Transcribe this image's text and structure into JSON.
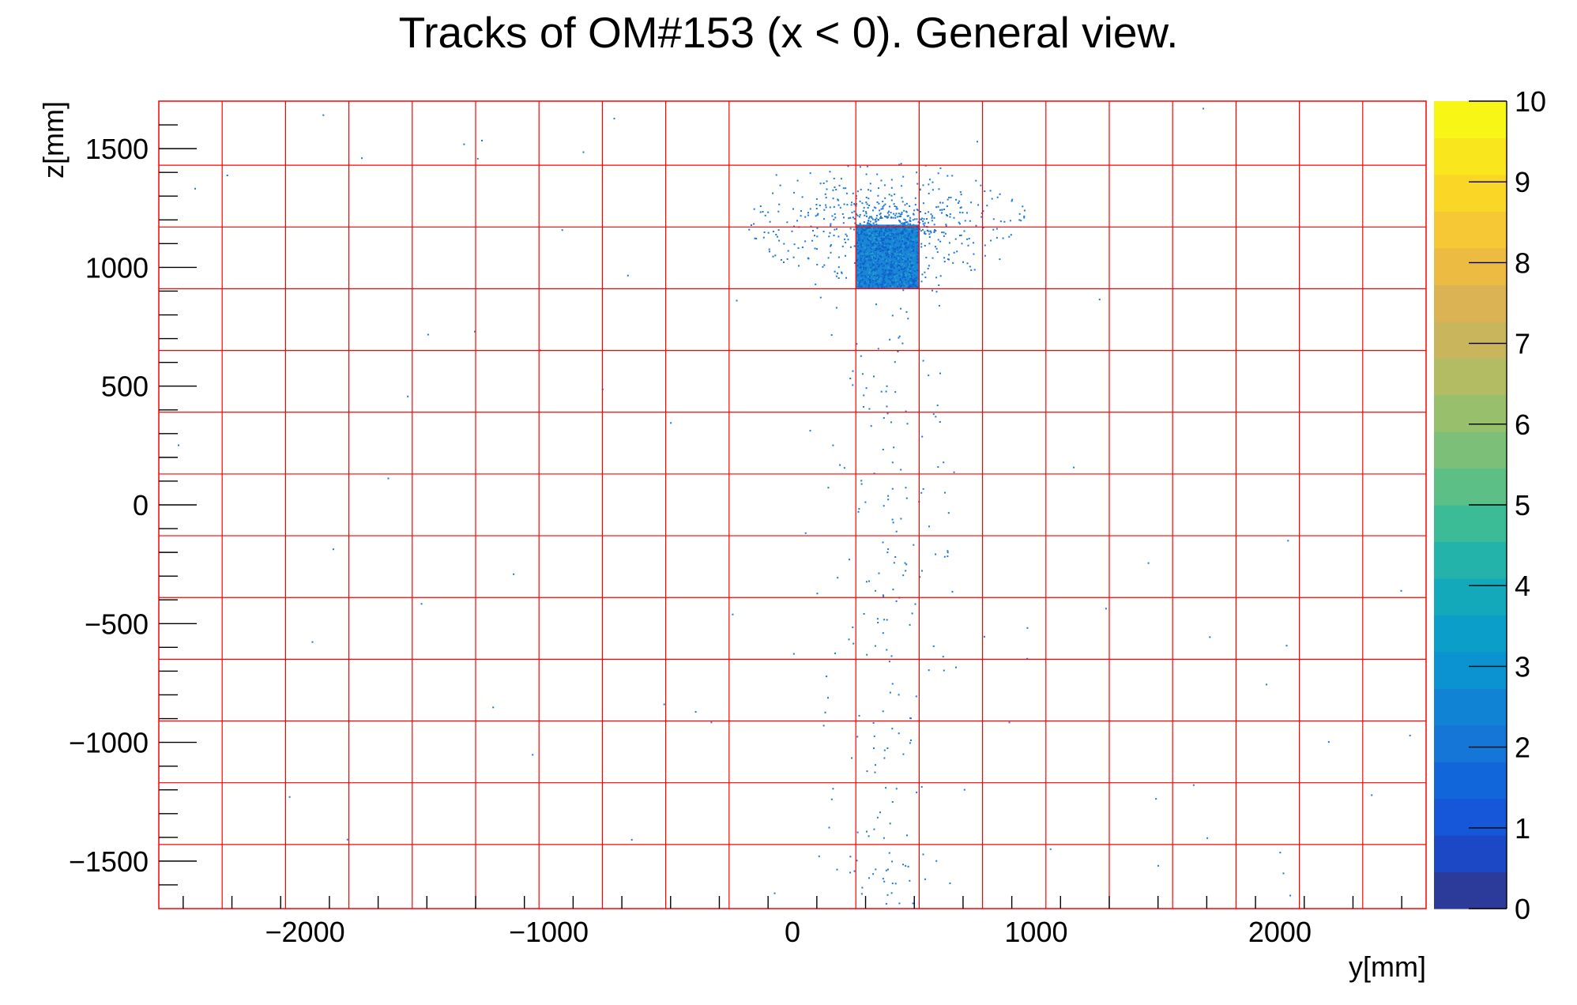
{
  "chart_data": {
    "type": "heatmap",
    "title": "Tracks of OM#153 (x < 0). General view.",
    "xlabel": "y[mm]",
    "ylabel": "z[mm]",
    "xlim": [
      -2600,
      2600
    ],
    "ylim": [
      -1700,
      1700
    ],
    "x_ticks": [
      -2000,
      -1000,
      0,
      1000,
      2000
    ],
    "x_tick_labels": [
      "−2000",
      "−1000",
      "0",
      "1000",
      "2000"
    ],
    "y_ticks": [
      -1500,
      -1000,
      -500,
      0,
      500,
      1000,
      1500
    ],
    "y_tick_labels": [
      "−1500",
      "−1000",
      "−500",
      "0",
      "500",
      "1000",
      "1500"
    ],
    "colorbar": {
      "range": [
        0,
        10
      ],
      "ticks": [
        0,
        1,
        2,
        3,
        4,
        5,
        6,
        7,
        8,
        9,
        10
      ],
      "tick_labels": [
        "0",
        "1",
        "2",
        "3",
        "4",
        "5",
        "6",
        "7",
        "8",
        "9",
        "10"
      ],
      "palette": [
        "#2c3a99",
        "#1c47c5",
        "#1557d8",
        "#1167d9",
        "#1576d7",
        "#1083d4",
        "#0b92d0",
        "#0b9ec8",
        "#13a9bb",
        "#23b3aa",
        "#3cbb97",
        "#5cbf86",
        "#7bbf79",
        "#98bf6c",
        "#b3bb63",
        "#c9b65c",
        "#dbb254",
        "#ebbb42",
        "#f7c835",
        "#fad727",
        "#f9e61c",
        "#f8f614"
      ]
    },
    "grid_lines": {
      "color": "#ff0000",
      "x": [
        -2340,
        -2080,
        -1820,
        -1560,
        -1300,
        -1040,
        -780,
        -520,
        -260,
        260,
        520,
        780,
        1040,
        1300,
        1560,
        1820,
        2080,
        2340
      ],
      "z": [
        -1430,
        -1170,
        -910,
        -650,
        -390,
        -130,
        130,
        390,
        650,
        910,
        1170,
        1430
      ]
    },
    "dense_region": {
      "y_range": [
        260,
        520
      ],
      "z_range": [
        910,
        1180
      ],
      "value": 2
    },
    "point_color": "#1a78d8"
  }
}
